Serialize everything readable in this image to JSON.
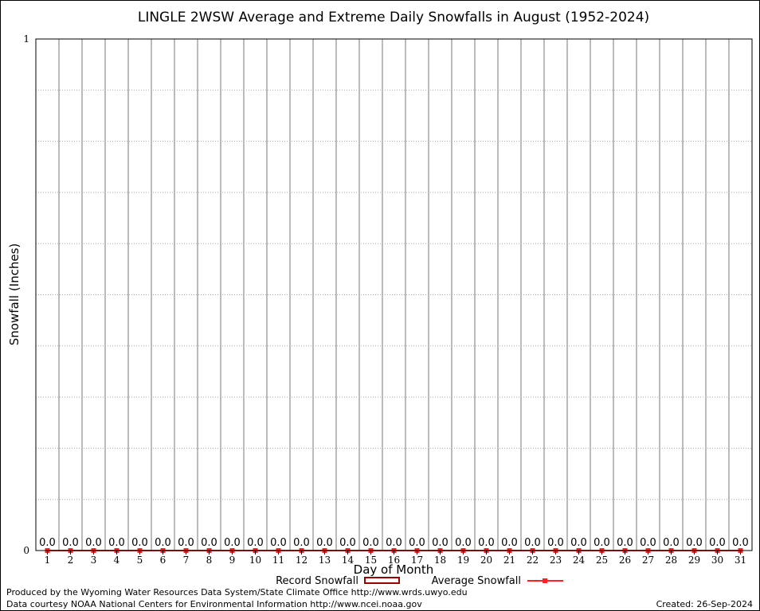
{
  "chart_data": {
    "type": "bar",
    "title": "LINGLE 2WSW Average and Extreme Daily Snowfalls in August (1952-2024)",
    "xlabel": "Day of Month",
    "ylabel": "Snowfall (Inches)",
    "xlim": [
      0.5,
      31.5
    ],
    "ylim": [
      0,
      1
    ],
    "yticks": [
      "0",
      "1"
    ],
    "grid": true,
    "categories": [
      "1",
      "2",
      "3",
      "4",
      "5",
      "6",
      "7",
      "8",
      "9",
      "10",
      "11",
      "12",
      "13",
      "14",
      "15",
      "16",
      "17",
      "18",
      "19",
      "20",
      "21",
      "22",
      "23",
      "24",
      "25",
      "26",
      "27",
      "28",
      "29",
      "30",
      "31"
    ],
    "series": [
      {
        "name": "Record Snowfall",
        "type": "bar",
        "color": "#990000",
        "values": [
          0,
          0,
          0,
          0,
          0,
          0,
          0,
          0,
          0,
          0,
          0,
          0,
          0,
          0,
          0,
          0,
          0,
          0,
          0,
          0,
          0,
          0,
          0,
          0,
          0,
          0,
          0,
          0,
          0,
          0,
          0
        ]
      },
      {
        "name": "Average Snowfall",
        "type": "line",
        "color": "#ff2020",
        "values": [
          0,
          0,
          0,
          0,
          0,
          0,
          0,
          0,
          0,
          0,
          0,
          0,
          0,
          0,
          0,
          0,
          0,
          0,
          0,
          0,
          0,
          0,
          0,
          0,
          0,
          0,
          0,
          0,
          0,
          0,
          0
        ]
      }
    ],
    "data_labels": [
      "0.0",
      "0.0",
      "0.0",
      "0.0",
      "0.0",
      "0.0",
      "0.0",
      "0.0",
      "0.0",
      "0.0",
      "0.0",
      "0.0",
      "0.0",
      "0.0",
      "0.0",
      "0.0",
      "0.0",
      "0.0",
      "0.0",
      "0.0",
      "0.0",
      "0.0",
      "0.0",
      "0.0",
      "0.0",
      "0.0",
      "0.0",
      "0.0",
      "0.0",
      "0.0",
      "0.0"
    ],
    "legend_position": "bottom"
  },
  "footer": {
    "produced_by": "Produced by the Wyoming Water Resources Data System/State Climate Office http://www.wrds.uwyo.edu",
    "data_courtesy": "Data courtesy NOAA National Centers for Environmental Information http://www.ncei.noaa.gov",
    "created": "Created: 26-Sep-2024"
  }
}
